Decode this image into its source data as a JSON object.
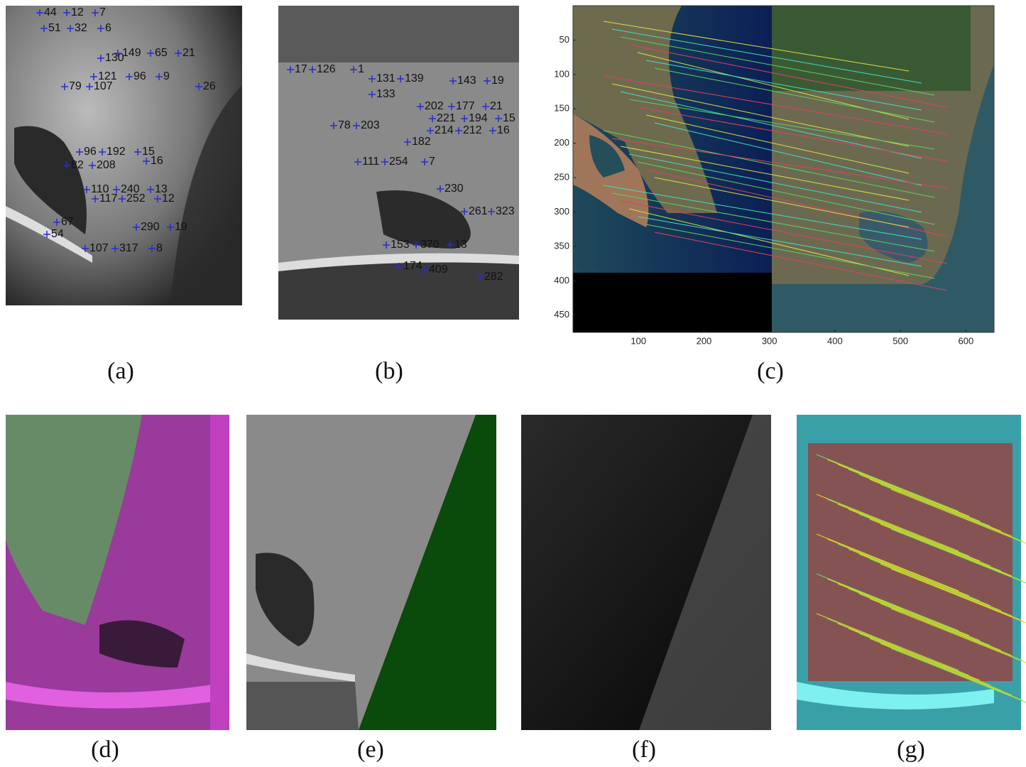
{
  "panels": [
    {
      "label": "(a)",
      "keypoints": [
        "44",
        "12",
        "7",
        "51",
        "32",
        "6",
        "130",
        "149",
        "65",
        "21",
        "121",
        "96",
        "9",
        "79",
        "107",
        "26",
        "96",
        "192",
        "15",
        "16",
        "82",
        "208",
        "110",
        "240",
        "13",
        "117",
        "252",
        "12",
        "67",
        "290",
        "19",
        "54",
        "107",
        "317",
        "8"
      ]
    },
    {
      "label": "(b)",
      "keypoints": [
        "17",
        "126",
        "1",
        "131",
        "139",
        "143",
        "19",
        "133",
        "202",
        "177",
        "21",
        "221",
        "194",
        "15",
        "78",
        "203",
        "214",
        "212",
        "16",
        "182",
        "111",
        "254",
        "7",
        "230",
        "261",
        "323",
        "153",
        "370",
        "13",
        "174",
        "409",
        "282"
      ]
    },
    {
      "label": "(c)",
      "xlim": [
        0,
        643
      ],
      "ylim": [
        0,
        475
      ],
      "xticks": [
        100,
        200,
        300,
        400,
        500,
        600
      ],
      "yticks": [
        50,
        100,
        150,
        200,
        250,
        300,
        350,
        400,
        450
      ]
    },
    {
      "label": "(d)"
    },
    {
      "label": "(e)"
    },
    {
      "label": "(f)"
    },
    {
      "label": "(g)"
    }
  ]
}
